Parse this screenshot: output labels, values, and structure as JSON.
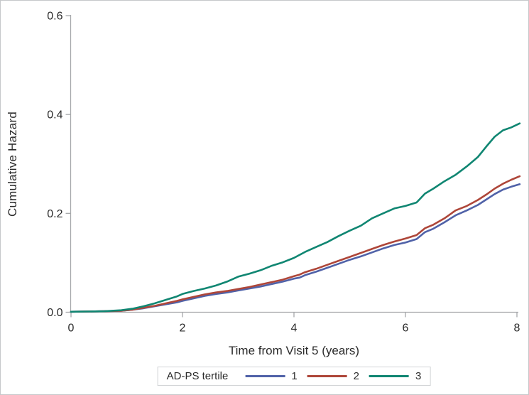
{
  "figure": {
    "background": "#ffffff",
    "border_color": "#c6c8ca",
    "axis_color": "#a6a8ab",
    "text_color": "#2b2b2b"
  },
  "chart_data": {
    "type": "line",
    "title": "",
    "xlabel": "Time from Visit 5 (years)",
    "ylabel": "Cumulative Hazard",
    "xlim": [
      0,
      8.2
    ],
    "ylim": [
      0,
      0.6
    ],
    "x_ticks": [
      0,
      2,
      4,
      6,
      8
    ],
    "x_tick_labels": [
      "0",
      "2",
      "4",
      "6",
      "8"
    ],
    "y_ticks": [
      0.0,
      0.2,
      0.4,
      0.6
    ],
    "y_tick_labels": [
      "0.0",
      "0.2",
      "0.4",
      "0.6"
    ],
    "grid": false,
    "legend": {
      "title": "AD-PS tertile",
      "position": "bottom-center",
      "entries": [
        {
          "label": "1",
          "color": "#5062A8"
        },
        {
          "label": "2",
          "color": "#AE4639"
        },
        {
          "label": "3",
          "color": "#108672"
        }
      ]
    },
    "series": [
      {
        "name": "1",
        "color": "#5062A8",
        "points": [
          [
            0,
            0.001
          ],
          [
            0.6,
            0.002
          ],
          [
            0.9,
            0.003
          ],
          [
            1.1,
            0.005
          ],
          [
            1.3,
            0.008
          ],
          [
            1.5,
            0.012
          ],
          [
            1.7,
            0.016
          ],
          [
            1.9,
            0.02
          ],
          [
            2.0,
            0.023
          ],
          [
            2.2,
            0.028
          ],
          [
            2.4,
            0.033
          ],
          [
            2.6,
            0.037
          ],
          [
            2.8,
            0.04
          ],
          [
            3.0,
            0.044
          ],
          [
            3.2,
            0.048
          ],
          [
            3.4,
            0.052
          ],
          [
            3.6,
            0.057
          ],
          [
            3.8,
            0.062
          ],
          [
            4.0,
            0.068
          ],
          [
            4.1,
            0.07
          ],
          [
            4.2,
            0.075
          ],
          [
            4.4,
            0.082
          ],
          [
            4.6,
            0.09
          ],
          [
            4.8,
            0.098
          ],
          [
            5.0,
            0.106
          ],
          [
            5.2,
            0.113
          ],
          [
            5.4,
            0.121
          ],
          [
            5.6,
            0.129
          ],
          [
            5.8,
            0.136
          ],
          [
            6.0,
            0.141
          ],
          [
            6.2,
            0.148
          ],
          [
            6.35,
            0.162
          ],
          [
            6.5,
            0.169
          ],
          [
            6.7,
            0.182
          ],
          [
            6.9,
            0.196
          ],
          [
            7.1,
            0.206
          ],
          [
            7.3,
            0.217
          ],
          [
            7.45,
            0.228
          ],
          [
            7.6,
            0.239
          ],
          [
            7.75,
            0.248
          ],
          [
            7.9,
            0.254
          ],
          [
            8.05,
            0.259
          ]
        ]
      },
      {
        "name": "2",
        "color": "#AE4639",
        "points": [
          [
            0,
            0.001
          ],
          [
            0.6,
            0.002
          ],
          [
            0.9,
            0.003
          ],
          [
            1.1,
            0.005
          ],
          [
            1.3,
            0.009
          ],
          [
            1.5,
            0.013
          ],
          [
            1.7,
            0.018
          ],
          [
            1.9,
            0.023
          ],
          [
            2.0,
            0.026
          ],
          [
            2.2,
            0.031
          ],
          [
            2.4,
            0.036
          ],
          [
            2.6,
            0.04
          ],
          [
            2.8,
            0.043
          ],
          [
            3.0,
            0.047
          ],
          [
            3.2,
            0.051
          ],
          [
            3.4,
            0.056
          ],
          [
            3.6,
            0.061
          ],
          [
            3.8,
            0.066
          ],
          [
            4.0,
            0.073
          ],
          [
            4.1,
            0.076
          ],
          [
            4.2,
            0.081
          ],
          [
            4.4,
            0.088
          ],
          [
            4.6,
            0.096
          ],
          [
            4.8,
            0.104
          ],
          [
            5.0,
            0.112
          ],
          [
            5.2,
            0.12
          ],
          [
            5.4,
            0.128
          ],
          [
            5.6,
            0.136
          ],
          [
            5.8,
            0.143
          ],
          [
            6.0,
            0.149
          ],
          [
            6.2,
            0.156
          ],
          [
            6.35,
            0.17
          ],
          [
            6.5,
            0.177
          ],
          [
            6.7,
            0.19
          ],
          [
            6.9,
            0.206
          ],
          [
            7.1,
            0.215
          ],
          [
            7.3,
            0.227
          ],
          [
            7.45,
            0.238
          ],
          [
            7.6,
            0.25
          ],
          [
            7.75,
            0.26
          ],
          [
            7.9,
            0.268
          ],
          [
            8.05,
            0.275
          ]
        ]
      },
      {
        "name": "3",
        "color": "#108672",
        "points": [
          [
            0,
            0.001
          ],
          [
            0.6,
            0.002
          ],
          [
            0.9,
            0.004
          ],
          [
            1.1,
            0.007
          ],
          [
            1.3,
            0.012
          ],
          [
            1.5,
            0.018
          ],
          [
            1.7,
            0.025
          ],
          [
            1.9,
            0.032
          ],
          [
            2.0,
            0.037
          ],
          [
            2.2,
            0.043
          ],
          [
            2.4,
            0.048
          ],
          [
            2.6,
            0.054
          ],
          [
            2.8,
            0.062
          ],
          [
            3.0,
            0.072
          ],
          [
            3.2,
            0.078
          ],
          [
            3.4,
            0.085
          ],
          [
            3.6,
            0.094
          ],
          [
            3.8,
            0.101
          ],
          [
            4.0,
            0.11
          ],
          [
            4.2,
            0.122
          ],
          [
            4.4,
            0.132
          ],
          [
            4.6,
            0.142
          ],
          [
            4.8,
            0.154
          ],
          [
            5.0,
            0.165
          ],
          [
            5.2,
            0.175
          ],
          [
            5.4,
            0.19
          ],
          [
            5.6,
            0.2
          ],
          [
            5.8,
            0.21
          ],
          [
            6.0,
            0.215
          ],
          [
            6.2,
            0.222
          ],
          [
            6.35,
            0.24
          ],
          [
            6.5,
            0.25
          ],
          [
            6.7,
            0.265
          ],
          [
            6.9,
            0.278
          ],
          [
            7.1,
            0.295
          ],
          [
            7.3,
            0.314
          ],
          [
            7.45,
            0.335
          ],
          [
            7.6,
            0.355
          ],
          [
            7.75,
            0.368
          ],
          [
            7.9,
            0.374
          ],
          [
            8.05,
            0.382
          ]
        ]
      }
    ]
  }
}
